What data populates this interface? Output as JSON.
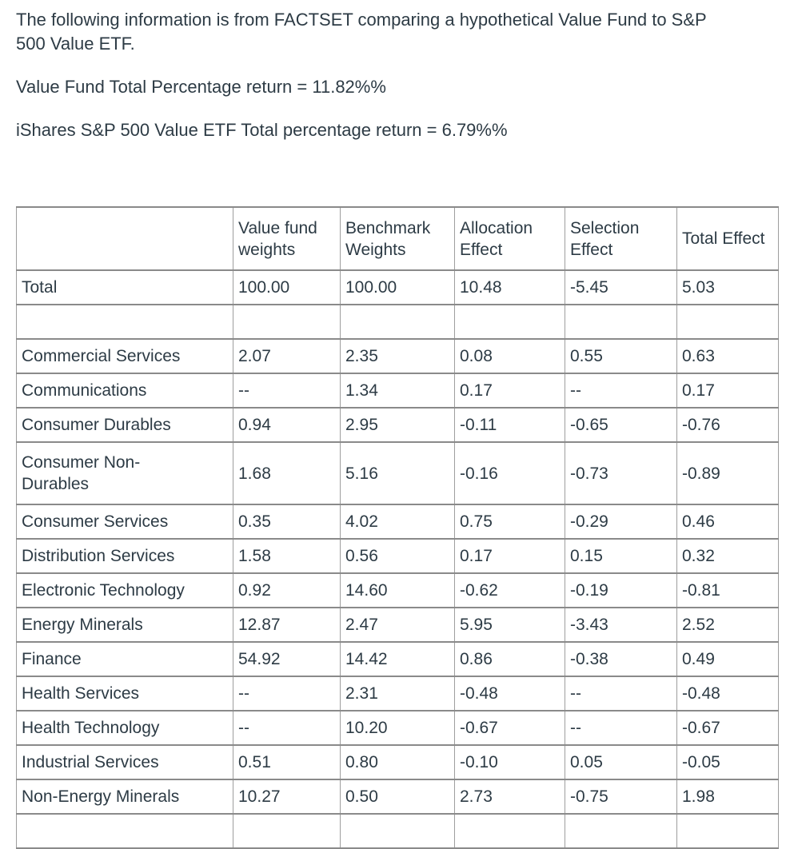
{
  "intro": {
    "text": "The following information is from FACTSET comparing a hypothetical Value Fund to S&P 500 Value ETF."
  },
  "returns": {
    "value_fund_line": "Value Fund Total Percentage return = 11.82%%",
    "etf_line": "iShares S&P 500 Value ETF Total percentage return = 6.79%%"
  },
  "colors": {
    "text": "#2D3B45",
    "table_border_horizontal": "#8a8a8a",
    "table_border_vertical": "#9e9e9e",
    "background": "#ffffff"
  },
  "table": {
    "columns": [
      "",
      "Value fund\nweights",
      "Benchmark\nWeights",
      "Allocation\nEffect",
      "Selection\nEffect",
      "Total Effect"
    ],
    "no_holding_placeholder": "--",
    "rows": [
      {
        "label": "Total",
        "values": [
          "100.00",
          "100.00",
          "10.48",
          "-5.45",
          "5.03"
        ]
      },
      {
        "label": "",
        "values": [
          "",
          "",
          "",
          "",
          ""
        ]
      },
      {
        "label": "Commercial Services",
        "values": [
          "2.07",
          "2.35",
          "0.08",
          "0.55",
          "0.63"
        ]
      },
      {
        "label": "Communications",
        "values": [
          "--",
          "1.34",
          "0.17",
          "--",
          "0.17"
        ]
      },
      {
        "label": "Consumer Durables",
        "values": [
          "0.94",
          "2.95",
          "-0.11",
          "-0.65",
          "-0.76"
        ]
      },
      {
        "label": "Consumer Non-\nDurables",
        "values": [
          "1.68",
          "5.16",
          "-0.16",
          "-0.73",
          "-0.89"
        ]
      },
      {
        "label": "Consumer Services",
        "values": [
          "0.35",
          "4.02",
          "0.75",
          "-0.29",
          "0.46"
        ]
      },
      {
        "label": "Distribution Services",
        "values": [
          "1.58",
          "0.56",
          "0.17",
          "0.15",
          "0.32"
        ]
      },
      {
        "label": "Electronic Technology",
        "values": [
          "0.92",
          "14.60",
          "-0.62",
          "-0.19",
          "-0.81"
        ]
      },
      {
        "label": "Energy Minerals",
        "values": [
          "12.87",
          "2.47",
          "5.95",
          "-3.43",
          "2.52"
        ]
      },
      {
        "label": "Finance",
        "values": [
          "54.92",
          "14.42",
          "0.86",
          "-0.38",
          "0.49"
        ]
      },
      {
        "label": "Health Services",
        "values": [
          "--",
          "2.31",
          "-0.48",
          "--",
          "-0.48"
        ]
      },
      {
        "label": "Health Technology",
        "values": [
          "--",
          "10.20",
          "-0.67",
          "--",
          "-0.67"
        ]
      },
      {
        "label": "Industrial Services",
        "values": [
          "0.51",
          "0.80",
          "-0.10",
          "0.05",
          "-0.05"
        ]
      },
      {
        "label": "Non-Energy Minerals",
        "values": [
          "10.27",
          "0.50",
          "2.73",
          "-0.75",
          "1.98"
        ]
      }
    ],
    "clipped_partial_row": {
      "label": "",
      "values": [
        "",
        "",
        "",
        "",
        ""
      ]
    }
  }
}
